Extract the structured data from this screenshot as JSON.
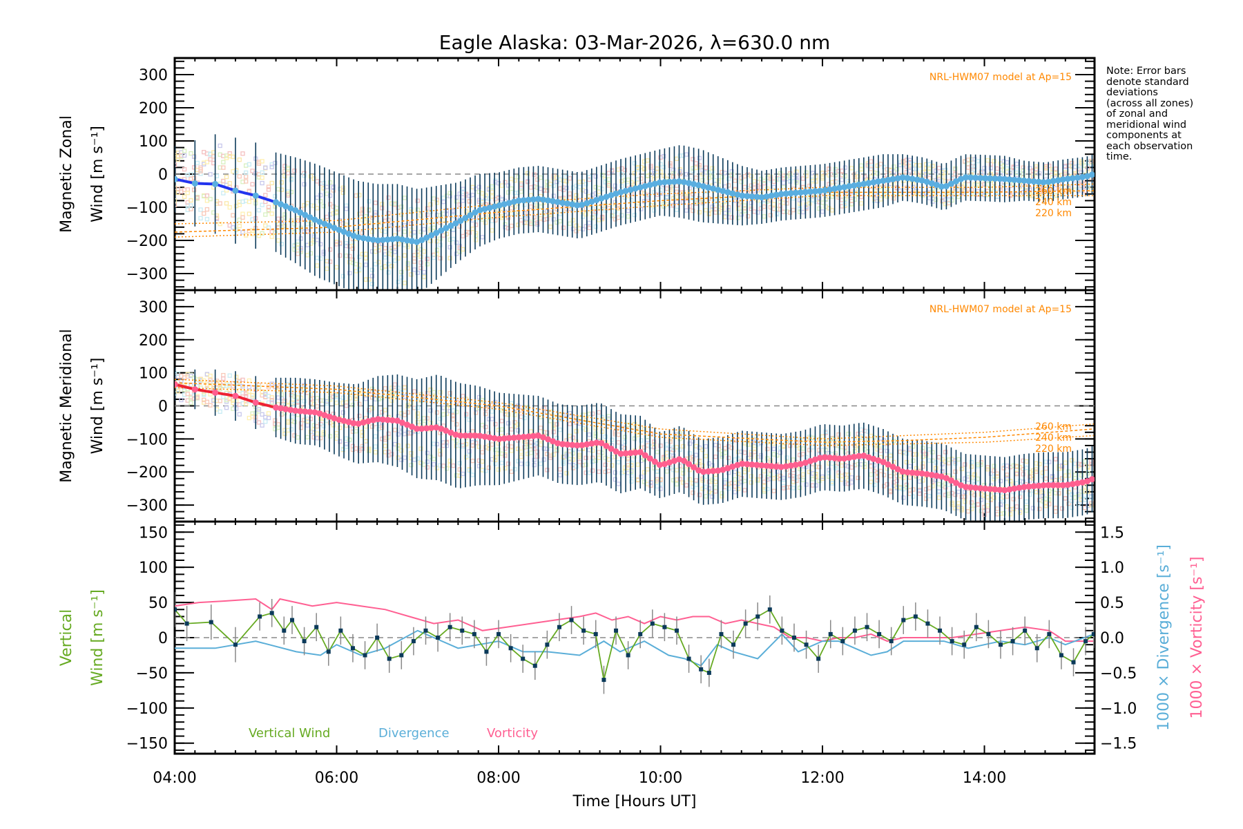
{
  "title": "Eagle Alaska: 03-Mar-2026, λ=630.0 nm",
  "note_lines": [
    "Note: Error bars",
    "denote standard",
    "deviations",
    "(across all zones)",
    "of zonal and",
    "meridional wind",
    "components at",
    "each observation",
    "time."
  ],
  "chart_data": [
    {
      "type": "line",
      "panel": "zonal",
      "ylabel_line1": "Magnetic Zonal",
      "ylabel_line2": "Wind [m s⁻¹]",
      "ylim": [
        -350,
        350
      ],
      "yticks": [
        300,
        200,
        100,
        0,
        -100,
        -200,
        -300
      ],
      "ytick_labels": [
        "300",
        "200",
        "100",
        "0",
        "−100",
        "−200",
        "−300"
      ],
      "model_label": "NRL-HWM07 model at Ap=15",
      "model_alt_labels": [
        "260 km",
        "240 km",
        "220 km"
      ],
      "colors": {
        "mean": "#2233ee",
        "mean_marker": "#5aaee0",
        "errbar": "#0b3a5a",
        "model": "#ff8800",
        "zero": "#888888"
      },
      "series": [
        {
          "name": "Zonal mean wind",
          "x": [
            4.0,
            4.25,
            4.5,
            4.75,
            5.0,
            5.25,
            5.5,
            5.75,
            6.0,
            6.25,
            6.5,
            6.75,
            7.0,
            7.25,
            7.5,
            7.75,
            8.0,
            8.25,
            8.5,
            8.75,
            9.0,
            9.25,
            9.5,
            9.75,
            10.0,
            10.25,
            10.5,
            10.75,
            11.0,
            11.25,
            11.5,
            11.75,
            12.0,
            12.25,
            12.5,
            12.75,
            13.0,
            13.25,
            13.5,
            13.75,
            14.0,
            14.25,
            14.5,
            14.75,
            15.0,
            15.25,
            15.35
          ],
          "y": [
            -15,
            -28,
            -30,
            -50,
            -65,
            -85,
            -110,
            -140,
            -165,
            -190,
            -200,
            -195,
            -205,
            -175,
            -145,
            -110,
            -95,
            -80,
            -75,
            -85,
            -95,
            -75,
            -55,
            -40,
            -25,
            -22,
            -35,
            -50,
            -65,
            -70,
            -60,
            -55,
            -50,
            -40,
            -30,
            -20,
            -10,
            -20,
            -40,
            -10,
            -12,
            -15,
            -20,
            -25,
            -15,
            -8,
            0
          ],
          "err": [
            100,
            130,
            150,
            160,
            160,
            150,
            160,
            170,
            170,
            170,
            170,
            165,
            160,
            140,
            120,
            110,
            100,
            100,
            100,
            100,
            100,
            100,
            100,
            100,
            100,
            110,
            110,
            100,
            90,
            80,
            80,
            80,
            80,
            80,
            80,
            80,
            70,
            70,
            70,
            70,
            70,
            70,
            60,
            60,
            60,
            60,
            60
          ]
        },
        {
          "name": "HWM07 260 km",
          "x": [
            4.0,
            6.0,
            8.0,
            10.0,
            12.0,
            14.0,
            15.35
          ],
          "y": [
            -150,
            -140,
            -90,
            -60,
            -40,
            -40,
            -30
          ]
        },
        {
          "name": "HWM07 240 km",
          "x": [
            4.0,
            6.0,
            8.0,
            10.0,
            12.0,
            14.0,
            15.35
          ],
          "y": [
            -175,
            -160,
            -115,
            -80,
            -55,
            -55,
            -50
          ]
        },
        {
          "name": "HWM07 220 km",
          "x": [
            4.0,
            6.0,
            8.0,
            10.0,
            12.0,
            14.0,
            15.35
          ],
          "y": [
            -190,
            -175,
            -130,
            -95,
            -65,
            -65,
            -65
          ]
        }
      ]
    },
    {
      "type": "line",
      "panel": "meridional",
      "ylabel_line1": "Magnetic Meridional",
      "ylabel_line2": "Wind [m s⁻¹]",
      "ylim": [
        -350,
        350
      ],
      "yticks": [
        300,
        200,
        100,
        0,
        -100,
        -200,
        -300
      ],
      "ytick_labels": [
        "300",
        "200",
        "100",
        "0",
        "−100",
        "−200",
        "−300"
      ],
      "model_label": "NRL-HWM07 model at Ap=15",
      "model_alt_labels": [
        "260 km",
        "240 km",
        "220 km"
      ],
      "colors": {
        "mean": "#ee2233",
        "mean_marker": "#ff5f8f",
        "errbar": "#0b3a5a",
        "model": "#ff8800",
        "zero": "#888888"
      },
      "series": [
        {
          "name": "Meridional mean wind",
          "x": [
            4.0,
            4.25,
            4.5,
            4.75,
            5.0,
            5.25,
            5.5,
            5.75,
            6.0,
            6.25,
            6.5,
            6.75,
            7.0,
            7.25,
            7.5,
            7.75,
            8.0,
            8.25,
            8.5,
            8.75,
            9.0,
            9.25,
            9.5,
            9.75,
            10.0,
            10.25,
            10.5,
            10.75,
            11.0,
            11.25,
            11.5,
            11.75,
            12.0,
            12.25,
            12.5,
            12.75,
            13.0,
            13.25,
            13.5,
            13.75,
            14.0,
            14.25,
            14.5,
            14.75,
            15.0,
            15.25,
            15.35
          ],
          "y": [
            65,
            50,
            40,
            30,
            10,
            -5,
            -15,
            -20,
            -40,
            -55,
            -40,
            -45,
            -70,
            -65,
            -90,
            -90,
            -100,
            -95,
            -90,
            -115,
            -120,
            -110,
            -145,
            -140,
            -180,
            -160,
            -200,
            -195,
            -175,
            -180,
            -185,
            -175,
            -155,
            -160,
            -150,
            -170,
            -200,
            -205,
            -215,
            -245,
            -250,
            -255,
            -245,
            -240,
            -240,
            -230,
            -220
          ],
          "err": [
            50,
            60,
            70,
            75,
            80,
            90,
            100,
            100,
            110,
            120,
            130,
            140,
            150,
            160,
            160,
            150,
            140,
            130,
            120,
            120,
            120,
            120,
            120,
            110,
            100,
            100,
            100,
            100,
            100,
            100,
            100,
            100,
            100,
            100,
            100,
            100,
            100,
            100,
            100,
            100,
            100,
            100,
            100,
            100,
            100,
            100,
            100
          ]
        },
        {
          "name": "HWM07 260 km",
          "x": [
            4.0,
            6.0,
            8.0,
            10.0,
            12.0,
            13.0,
            14.0,
            15.35
          ],
          "y": [
            80,
            60,
            10,
            -70,
            -100,
            -90,
            -80,
            -55
          ]
        },
        {
          "name": "HWM07 240 km",
          "x": [
            4.0,
            6.0,
            8.0,
            10.0,
            12.0,
            13.0,
            14.0,
            15.35
          ],
          "y": [
            70,
            50,
            0,
            -85,
            -110,
            -105,
            -95,
            -70
          ]
        },
        {
          "name": "HWM07 220 km",
          "x": [
            4.0,
            6.0,
            8.0,
            10.0,
            12.0,
            13.0,
            14.0,
            15.35
          ],
          "y": [
            55,
            40,
            -10,
            -95,
            -120,
            -115,
            -110,
            -90
          ]
        }
      ]
    },
    {
      "type": "line",
      "panel": "vertical",
      "ylabel_left_line1": "Vertical",
      "ylabel_left_line2": "Wind [m s⁻¹]",
      "ylabel_right1": "1000 × Divergence [s⁻¹]",
      "ylabel_right2": "1000 × Vorticity [s⁻¹]",
      "ylim": [
        -165,
        165
      ],
      "ylim_right": [
        -1.65,
        1.65
      ],
      "yticks": [
        150,
        100,
        50,
        0,
        -50,
        -100,
        -150
      ],
      "ytick_labels": [
        "150",
        "100",
        "50",
        "0",
        "−50",
        "−100",
        "−150"
      ],
      "yticks_right": [
        1.5,
        1.0,
        0.5,
        0.0,
        -0.5,
        -1.0,
        -1.5
      ],
      "ytick_labels_right": [
        "1.5",
        "1.0",
        "0.5",
        "0.0",
        "−0.5",
        "−1.0",
        "−1.5"
      ],
      "xlabel": "Time [Hours UT]",
      "xlim": [
        4.0,
        15.36
      ],
      "xticks": [
        4,
        6,
        8,
        10,
        12,
        14
      ],
      "xtick_labels": [
        "04:00",
        "06:00",
        "08:00",
        "10:00",
        "12:00",
        "14:00"
      ],
      "legend": [
        {
          "label": "Vertical Wind",
          "color": "#66aa22"
        },
        {
          "label": "Divergence",
          "color": "#5aaed8"
        },
        {
          "label": "Vorticity",
          "color": "#ff5f92"
        }
      ],
      "legend_position": "bottom-left",
      "series": [
        {
          "name": "Vertical Wind",
          "axis": "left",
          "x": [
            4.0,
            4.15,
            4.45,
            4.75,
            5.05,
            5.2,
            5.35,
            5.45,
            5.6,
            5.75,
            5.9,
            6.05,
            6.2,
            6.35,
            6.5,
            6.65,
            6.8,
            6.95,
            7.1,
            7.25,
            7.4,
            7.55,
            7.7,
            7.85,
            8.0,
            8.15,
            8.3,
            8.45,
            8.6,
            8.75,
            8.9,
            9.05,
            9.2,
            9.3,
            9.45,
            9.6,
            9.75,
            9.9,
            10.05,
            10.2,
            10.35,
            10.5,
            10.6,
            10.75,
            10.9,
            11.05,
            11.2,
            11.35,
            11.5,
            11.65,
            11.8,
            11.95,
            12.1,
            12.25,
            12.4,
            12.55,
            12.7,
            12.85,
            13.0,
            13.15,
            13.3,
            13.45,
            13.6,
            13.75,
            13.9,
            14.05,
            14.2,
            14.35,
            14.5,
            14.65,
            14.8,
            14.95,
            15.1,
            15.25,
            15.35
          ],
          "y": [
            40,
            20,
            22,
            -10,
            30,
            35,
            10,
            25,
            -5,
            15,
            -20,
            10,
            -15,
            -25,
            0,
            -30,
            -25,
            -5,
            10,
            0,
            15,
            10,
            5,
            -20,
            5,
            -15,
            -30,
            -40,
            -10,
            15,
            25,
            10,
            5,
            -60,
            10,
            -25,
            5,
            20,
            15,
            10,
            -30,
            -45,
            -50,
            5,
            -10,
            20,
            30,
            40,
            10,
            0,
            -10,
            -30,
            5,
            -5,
            10,
            15,
            5,
            -5,
            25,
            30,
            20,
            10,
            -5,
            -10,
            15,
            5,
            -10,
            -5,
            10,
            -15,
            5,
            -25,
            -35,
            -5,
            5
          ],
          "err": [
            25,
            25,
            25,
            25,
            20,
            20,
            20,
            20,
            20,
            20,
            20,
            20,
            20,
            20,
            20,
            20,
            20,
            20,
            20,
            20,
            20,
            20,
            20,
            20,
            20,
            20,
            20,
            20,
            20,
            20,
            20,
            20,
            20,
            20,
            20,
            20,
            20,
            20,
            20,
            20,
            20,
            20,
            20,
            20,
            20,
            20,
            20,
            20,
            20,
            20,
            20,
            20,
            20,
            20,
            20,
            20,
            20,
            20,
            20,
            20,
            20,
            20,
            20,
            20,
            20,
            20,
            20,
            20,
            20,
            20,
            20,
            20,
            20,
            20,
            20
          ]
        },
        {
          "name": "Divergence",
          "axis": "right",
          "x": [
            4.0,
            4.5,
            5.0,
            5.5,
            5.8,
            6.0,
            6.3,
            6.6,
            7.0,
            7.2,
            7.5,
            8.0,
            8.3,
            8.6,
            9.0,
            9.3,
            9.5,
            9.8,
            10.1,
            10.3,
            10.5,
            10.7,
            10.9,
            11.2,
            11.5,
            11.7,
            12.0,
            12.2,
            12.4,
            12.6,
            12.8,
            13.0,
            13.2,
            13.5,
            13.8,
            14.0,
            14.2,
            14.5,
            14.8,
            15.0,
            15.35
          ],
          "y": [
            -0.15,
            -0.15,
            -0.05,
            -0.2,
            -0.25,
            -0.1,
            -0.25,
            -0.15,
            0.1,
            0.0,
            -0.15,
            -0.05,
            -0.2,
            -0.2,
            -0.25,
            -0.05,
            -0.2,
            -0.05,
            -0.25,
            -0.3,
            -0.4,
            -0.1,
            -0.2,
            -0.3,
            0.05,
            -0.2,
            -0.05,
            -0.05,
            -0.15,
            -0.25,
            -0.2,
            -0.05,
            -0.05,
            -0.05,
            -0.15,
            -0.1,
            -0.05,
            -0.1,
            0.0,
            -0.1,
            0.05
          ]
        },
        {
          "name": "Vorticity",
          "axis": "right",
          "x": [
            4.0,
            4.3,
            4.6,
            5.0,
            5.2,
            5.3,
            5.5,
            5.7,
            6.0,
            6.3,
            6.6,
            6.9,
            7.2,
            7.5,
            7.8,
            8.1,
            8.4,
            8.7,
            9.0,
            9.2,
            9.4,
            9.6,
            9.8,
            10.0,
            10.2,
            10.4,
            10.6,
            10.8,
            11.0,
            11.2,
            11.4,
            11.6,
            11.8,
            12.0,
            12.2,
            12.4,
            12.6,
            12.8,
            13.0,
            13.3,
            13.6,
            13.9,
            14.2,
            14.5,
            14.8,
            15.0,
            15.35
          ],
          "y": [
            0.45,
            0.5,
            0.52,
            0.55,
            0.4,
            0.55,
            0.5,
            0.45,
            0.5,
            0.45,
            0.4,
            0.3,
            0.2,
            0.25,
            0.1,
            0.15,
            0.2,
            0.25,
            0.3,
            0.35,
            0.25,
            0.3,
            0.2,
            0.3,
            0.25,
            0.3,
            0.3,
            0.2,
            0.25,
            0.2,
            0.15,
            0.0,
            0.0,
            -0.05,
            0.0,
            0.0,
            0.05,
            -0.05,
            0.0,
            0.0,
            0.0,
            0.05,
            0.1,
            0.15,
            0.1,
            -0.05,
            -0.05
          ]
        }
      ]
    }
  ]
}
